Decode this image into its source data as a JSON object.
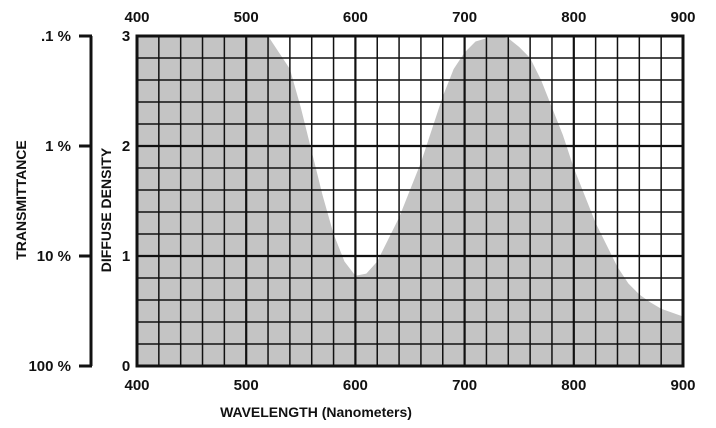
{
  "chart_data": {
    "type": "area",
    "title": "",
    "xlabel": "WAVELENGTH (Nanometers)",
    "ylabel": "DIFFUSE DENSITY",
    "ylabel_secondary": "TRANSMITTANCE",
    "xlim": [
      400,
      900
    ],
    "ylim": [
      0,
      3
    ],
    "x_ticks": [
      "400",
      "500",
      "600",
      "700",
      "800",
      "900"
    ],
    "x_ticks_top": [
      "400",
      "500",
      "600",
      "700",
      "800",
      "900"
    ],
    "y_ticks": [
      "0",
      "1",
      "2",
      "3"
    ],
    "transmittance_ticks": [
      ".1 %",
      "1 %",
      "10 %",
      "100 %"
    ],
    "grid": true,
    "series": [
      {
        "x": [
          400,
          520,
          540,
          550,
          560,
          570,
          580,
          590,
          600,
          610,
          620,
          630,
          640,
          650,
          660,
          670,
          680,
          690,
          700,
          710,
          720,
          730,
          740,
          750,
          760,
          770,
          780,
          790,
          800,
          810,
          820,
          830,
          840,
          850,
          860,
          870,
          880,
          900
        ],
        "y": [
          3.0,
          3.0,
          2.7,
          2.35,
          1.95,
          1.55,
          1.2,
          0.95,
          0.82,
          0.84,
          0.95,
          1.15,
          1.35,
          1.6,
          1.85,
          2.15,
          2.45,
          2.7,
          2.85,
          2.95,
          2.98,
          3.0,
          2.98,
          2.9,
          2.8,
          2.6,
          2.35,
          2.1,
          1.8,
          1.55,
          1.3,
          1.1,
          0.9,
          0.75,
          0.65,
          0.58,
          0.52,
          0.45
        ]
      }
    ]
  }
}
